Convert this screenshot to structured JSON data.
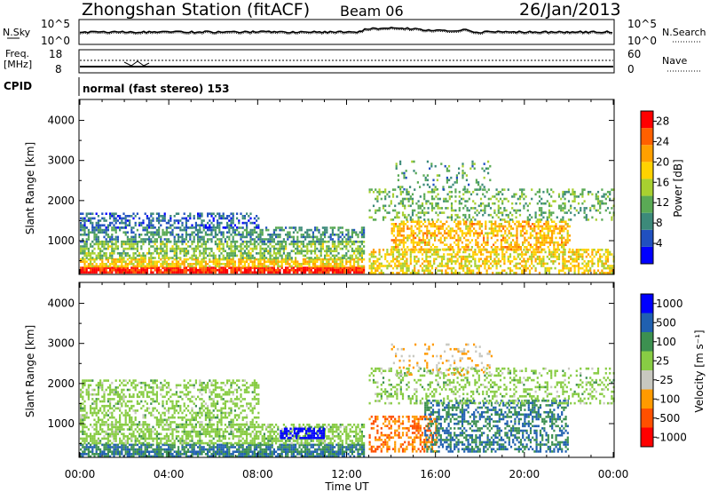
{
  "header": {
    "station": "Zhongshan Station (fitACF)",
    "beam": "Beam 06",
    "date": "26/Jan/2013"
  },
  "strip_panels": {
    "nsky": {
      "left_label": "N.Sky",
      "left_ticks": [
        "10^5",
        "10^0"
      ],
      "right_label": "N.Search",
      "right_ticks": [
        "10^5",
        "10^0"
      ]
    },
    "freq": {
      "left_label_1": "Freq.",
      "left_label_2": "[MHz]",
      "left_ticks": [
        "18",
        "8"
      ],
      "right_label": "Nave",
      "right_ticks": [
        "60",
        "0"
      ]
    },
    "cpid_label": "CPID",
    "cpid_value": "normal (fast stereo) 153"
  },
  "colors": {
    "power": [
      "#0000ff",
      "#2050c0",
      "#3c8a7a",
      "#5aaa55",
      "#a8d030",
      "#ffd200",
      "#ffa000",
      "#ff6000",
      "#ff0000"
    ],
    "velocity": [
      "#ff0000",
      "#ff5000",
      "#ff9a00",
      "#c8c8c0",
      "#88cc44",
      "#3c9050",
      "#2060b0",
      "#0000ff"
    ],
    "grey": "#bcbcbc"
  },
  "chart_data": [
    {
      "type": "heatmap",
      "panel": "power",
      "ylabel": "Slant Range [km]",
      "ylim": [
        180,
        4500
      ],
      "yticks": [
        "1000",
        "2000",
        "3000",
        "4000"
      ],
      "xlim": [
        0,
        24
      ],
      "xticks": [
        "00:00",
        "04:00",
        "08:00",
        "12:00",
        "16:00",
        "20:00",
        "00:00"
      ],
      "colorbar": {
        "label": "Power [dB]",
        "ticks": [
          "4",
          "8",
          "12",
          "16",
          "20",
          "24",
          "28"
        ],
        "range": [
          0,
          30
        ]
      },
      "bands": [
        {
          "t0": 0.0,
          "t1": 12.8,
          "r0": 200,
          "r1": 350,
          "v": 28,
          "d": 0.9
        },
        {
          "t0": 0.0,
          "t1": 12.8,
          "r0": 330,
          "r1": 560,
          "v": 19,
          "d": 0.75
        },
        {
          "t0": 0.0,
          "t1": 12.8,
          "r0": 560,
          "r1": 1000,
          "v": 13,
          "d": 0.6
        },
        {
          "t0": 0.0,
          "t1": 12.8,
          "r0": 1000,
          "r1": 1350,
          "v": 9,
          "d": 0.55
        },
        {
          "t0": 0.0,
          "t1": 8.0,
          "r0": 1350,
          "r1": 1700,
          "v": 6,
          "d": 0.45
        },
        {
          "t0": 13.0,
          "t1": 24.0,
          "r0": 200,
          "r1": 800,
          "v": 18,
          "d": 0.55
        },
        {
          "t0": 14.0,
          "t1": 22.0,
          "r0": 800,
          "r1": 1500,
          "v": 20,
          "d": 0.55
        },
        {
          "t0": 13.0,
          "t1": 24.0,
          "r0": 1500,
          "r1": 2300,
          "v": 12,
          "d": 0.3
        },
        {
          "t0": 14.2,
          "t1": 18.5,
          "r0": 2300,
          "r1": 3000,
          "v": 10,
          "d": 0.15
        }
      ]
    },
    {
      "type": "heatmap",
      "panel": "velocity",
      "ylabel": "Slant Range [km]",
      "xlabel": "Time UT",
      "ylim": [
        180,
        4500
      ],
      "yticks": [
        "1000",
        "2000",
        "3000",
        "4000"
      ],
      "xlim": [
        0,
        24
      ],
      "xticks": [
        "00:00",
        "04:00",
        "08:00",
        "12:00",
        "16:00",
        "20:00",
        "00:00"
      ],
      "colorbar": {
        "label": "Velocity [m s⁻¹]",
        "ticks": [
          "1000",
          "500",
          "100",
          "25",
          "-25",
          "-100",
          "-500",
          "-1000"
        ]
      },
      "bands": [
        {
          "t0": 0.0,
          "t1": 12.8,
          "r0": 200,
          "r1": 500,
          "v": 100,
          "d": 0.8
        },
        {
          "t0": 0.0,
          "t1": 12.8,
          "r0": 500,
          "r1": 1000,
          "v": 0,
          "d": 0.6
        },
        {
          "t0": 0.0,
          "t1": 8.0,
          "r0": 1000,
          "r1": 2100,
          "v": 0,
          "d": 0.45
        },
        {
          "t0": 9.0,
          "t1": 11.0,
          "r0": 650,
          "r1": 900,
          "v": 1000,
          "d": 0.7
        },
        {
          "t0": 13.0,
          "t1": 16.0,
          "r0": 300,
          "r1": 1200,
          "v": -500,
          "d": 0.45
        },
        {
          "t0": 15.5,
          "t1": 22.0,
          "r0": 300,
          "r1": 1600,
          "v": 100,
          "d": 0.5
        },
        {
          "t0": 13.0,
          "t1": 24.0,
          "r0": 1500,
          "r1": 2400,
          "v": 0,
          "d": 0.3
        },
        {
          "t0": 14.0,
          "t1": 18.5,
          "r0": 2200,
          "r1": 3000,
          "v": -100,
          "d": 0.15
        }
      ]
    }
  ]
}
